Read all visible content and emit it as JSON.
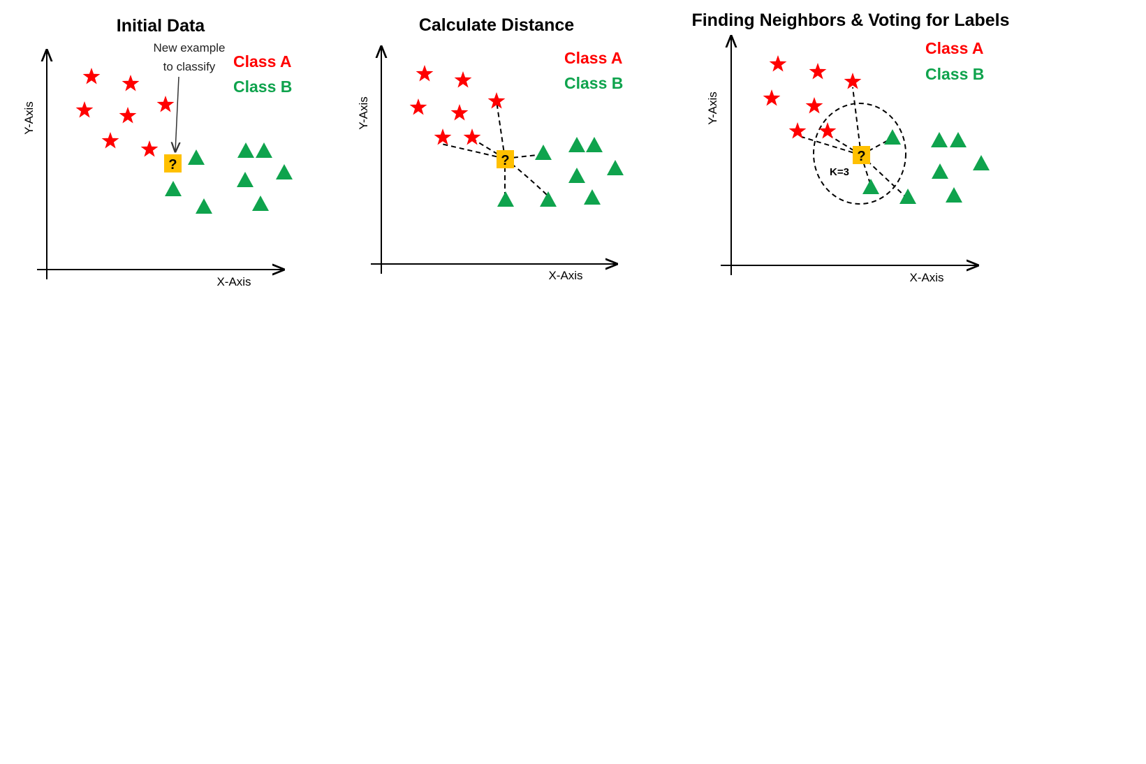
{
  "colors": {
    "class_a": "#ff0000",
    "class_b": "#0fa34d",
    "query": "#ffc000",
    "axis": "#000000"
  },
  "icons": {
    "class_a_marker": "star-icon",
    "class_b_marker": "triangle-icon",
    "query_marker": "question-box-icon"
  },
  "panels": [
    {
      "title": "Initial Data",
      "x_axis_label": "X-Axis",
      "y_axis_label": "Y-Axis",
      "legend": [
        "Class A",
        "Class B"
      ],
      "annotation": [
        "New example",
        "to classify"
      ],
      "query_label": "?"
    },
    {
      "title": "Calculate Distance",
      "x_axis_label": "X-Axis",
      "y_axis_label": "Y-Axis",
      "legend": [
        "Class A",
        "Class B"
      ],
      "query_label": "?"
    },
    {
      "title": "Finding Neighbors & Voting for Labels",
      "x_axis_label": "X-Axis",
      "y_axis_label": "Y-Axis",
      "legend": [
        "Class A",
        "Class B"
      ],
      "k_label": "K=3",
      "query_label": "?"
    }
  ]
}
